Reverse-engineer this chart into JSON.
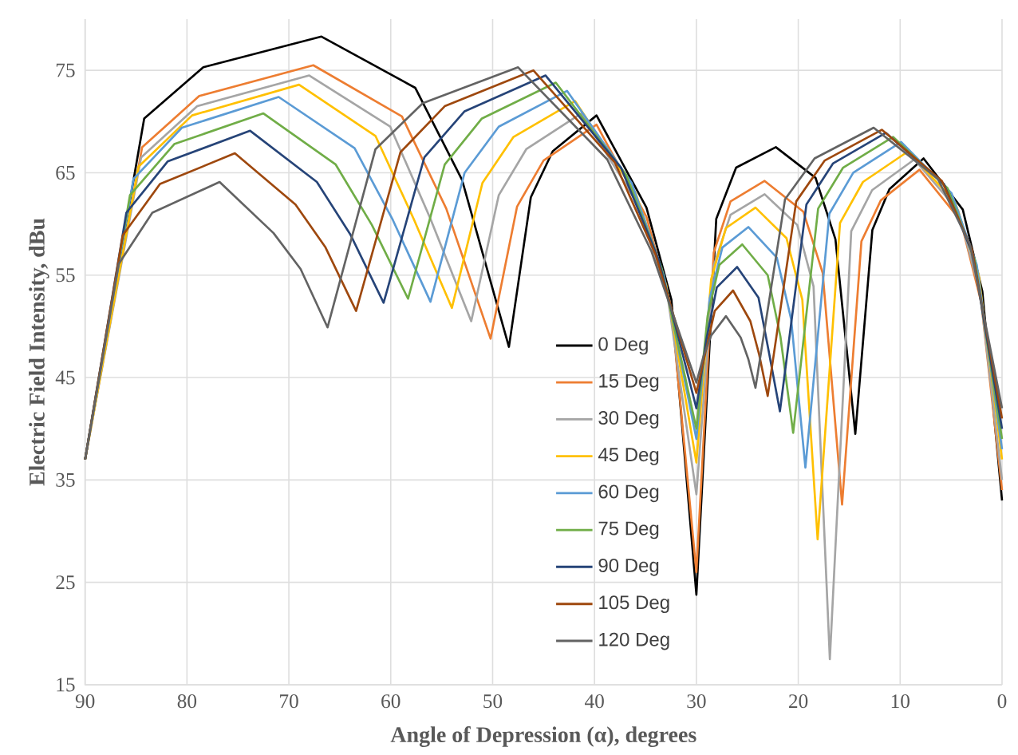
{
  "chart_data": {
    "type": "line",
    "xlabel": "Angle of Depression (α), degrees",
    "ylabel": "Electric Field Intensity, dBu",
    "xlim": [
      90,
      0
    ],
    "xticks": [
      90,
      80,
      70,
      60,
      50,
      40,
      30,
      20,
      10,
      0
    ],
    "ylim": [
      15,
      80
    ],
    "yticks": [
      15,
      25,
      35,
      45,
      55,
      65,
      75
    ],
    "grid": true,
    "legend": "bottom",
    "series": [
      {
        "name": "0 Deg",
        "color": "#000000",
        "x": [
          90,
          84.2,
          78.4,
          66.8,
          57.6,
          53.0,
          48.4,
          46.25,
          44.1,
          39.8,
          34.9,
          32.45,
          30,
          28.05,
          26.1,
          22.2,
          18.3,
          16.35,
          14.4,
          12.73,
          11.05,
          7.7,
          3.85,
          1.93,
          0
        ],
        "values": [
          37,
          70.3,
          75.3,
          78.3,
          73.3,
          64.3,
          48.0,
          62.6,
          67.1,
          70.6,
          61.6,
          52.6,
          23.8,
          60.5,
          65.5,
          67.5,
          64.5,
          58.5,
          39.5,
          59.4,
          63.4,
          66.4,
          61.4,
          53.4,
          33
        ]
      },
      {
        "name": "15 Deg",
        "color": "#ed7d31",
        "x": [
          90,
          84.4,
          78.8,
          67.6,
          58.9,
          54.55,
          50.2,
          47.6,
          45.0,
          39.8,
          34.9,
          32.45,
          30,
          28.3,
          26.65,
          23.3,
          19.5,
          17.6,
          15.7,
          13.8,
          11.9,
          8.1,
          4.05,
          2.03,
          0
        ],
        "values": [
          37,
          67.5,
          72.5,
          75.5,
          70.5,
          61.5,
          48.8,
          61.7,
          66.2,
          69.7,
          60.7,
          51.7,
          26,
          57.2,
          62.2,
          64.2,
          61.2,
          55.2,
          32.6,
          58.3,
          62.3,
          65.3,
          60.3,
          52.3,
          34
        ]
      },
      {
        "name": "30 Deg",
        "color": "#a5a5a5",
        "x": [
          90,
          84.5,
          79.0,
          68.0,
          60.05,
          56.1,
          52.1,
          49.4,
          46.7,
          41.3,
          35.65,
          32.8,
          30,
          28.3,
          26.65,
          23.3,
          20.1,
          18.5,
          16.9,
          14.8,
          12.75,
          8.6,
          4.3,
          2.15,
          0
        ],
        "values": [
          37,
          66.5,
          71.5,
          74.5,
          69.5,
          60.5,
          50.5,
          62.8,
          67.3,
          70.8,
          61.8,
          52.8,
          33.6,
          55.9,
          60.9,
          62.9,
          59.9,
          53.9,
          17.5,
          59.3,
          63.3,
          66.3,
          61.3,
          53.3,
          35
        ]
      },
      {
        "name": "45 Deg",
        "color": "#ffc000",
        "x": [
          90,
          84.75,
          79.5,
          69.0,
          61.5,
          57.75,
          54.0,
          51.0,
          47.95,
          41.9,
          35.95,
          32.95,
          30,
          28.55,
          27.1,
          24.2,
          21.15,
          19.6,
          18.1,
          15.9,
          13.65,
          9.2,
          4.6,
          2.3,
          0
        ],
        "values": [
          37,
          65.6,
          70.6,
          73.6,
          68.6,
          60.5,
          51.8,
          64.0,
          68.5,
          72.0,
          63.0,
          54.0,
          36.7,
          54.6,
          59.6,
          61.6,
          58.6,
          52.6,
          29.2,
          60.1,
          64.1,
          67.1,
          62.1,
          55.1,
          37
        ]
      },
      {
        "name": "60 Deg",
        "color": "#5b9bd5",
        "x": [
          90,
          85.25,
          80.5,
          71.0,
          63.55,
          59.8,
          56.1,
          52.75,
          49.4,
          42.7,
          36.35,
          33.2,
          30,
          28.7,
          27.45,
          24.9,
          22.1,
          20.7,
          19.3,
          16.95,
          14.6,
          9.9,
          4.95,
          2.48,
          0
        ],
        "values": [
          37,
          64.4,
          69.4,
          72.4,
          67.4,
          60.4,
          52.4,
          65.0,
          69.5,
          73.0,
          64.0,
          55.0,
          39,
          52.7,
          57.7,
          59.7,
          56.7,
          50.7,
          36.2,
          61.0,
          65.0,
          68.0,
          63.0,
          56.0,
          38
        ]
      },
      {
        "name": "75 Deg",
        "color": "#70ad47",
        "x": [
          90,
          85.6,
          81.25,
          72.5,
          65.4,
          61.85,
          58.3,
          54.7,
          51.05,
          43.8,
          36.9,
          33.45,
          30,
          28.9,
          27.75,
          25.5,
          23.0,
          21.75,
          20.5,
          18.05,
          15.6,
          10.7,
          5.35,
          2.68,
          0
        ],
        "values": [
          37,
          62.8,
          67.8,
          70.8,
          65.8,
          59.9,
          52.7,
          65.8,
          70.3,
          73.8,
          64.8,
          55.8,
          40,
          51.0,
          56.0,
          58.0,
          55.0,
          49.0,
          39.6,
          61.5,
          65.5,
          68.5,
          63.5,
          56.5,
          39
        ]
      },
      {
        "name": "90 Deg",
        "color": "#264478",
        "x": [
          90,
          85.95,
          81.9,
          73.8,
          67.25,
          63.98,
          60.7,
          56.7,
          52.75,
          44.8,
          37.4,
          33.7,
          30,
          29.0,
          28.0,
          26.0,
          23.9,
          22.85,
          21.8,
          19.2,
          16.6,
          11.4,
          5.7,
          2.85,
          0
        ],
        "values": [
          37,
          61.1,
          66.1,
          69.1,
          64.1,
          59.0,
          52.3,
          66.5,
          71.0,
          74.5,
          65.5,
          56.5,
          42,
          48.8,
          53.8,
          55.8,
          52.8,
          47.3,
          41.7,
          61.9,
          65.9,
          68.9,
          63.9,
          57.0,
          40
        ]
      },
      {
        "name": "105 Deg",
        "color": "#9e480e",
        "x": [
          90,
          86.3,
          82.65,
          75.3,
          69.35,
          66.4,
          63.4,
          59.05,
          54.7,
          46.0,
          38.0,
          34.0,
          30,
          29.1,
          28.2,
          26.4,
          24.7,
          23.85,
          23.0,
          20.2,
          17.4,
          11.8,
          5.9,
          2.95,
          0
        ],
        "values": [
          37,
          58.9,
          63.9,
          66.9,
          61.9,
          57.7,
          51.5,
          67.0,
          71.5,
          75.0,
          66.0,
          57.0,
          43.5,
          47.5,
          51.5,
          53.5,
          50.5,
          47.3,
          43.2,
          62.2,
          66.2,
          69.2,
          64.2,
          57.5,
          41
        ]
      },
      {
        "name": "120 Deg",
        "color": "#636363",
        "x": [
          90,
          86.7,
          83.4,
          76.8,
          71.5,
          68.85,
          66.2,
          61.5,
          56.85,
          47.5,
          38.75,
          34.4,
          30,
          29.3,
          28.55,
          27.1,
          25.65,
          24.9,
          24.2,
          21.3,
          18.4,
          12.6,
          6.3,
          3.15,
          0
        ],
        "values": [
          37,
          56.1,
          61.1,
          64.1,
          59.1,
          55.6,
          49.9,
          67.3,
          71.8,
          75.3,
          66.3,
          57.3,
          44.5,
          47.1,
          49.1,
          51.0,
          48.9,
          46.8,
          44.0,
          62.4,
          66.4,
          69.4,
          64.4,
          58.0,
          42
        ]
      }
    ]
  }
}
